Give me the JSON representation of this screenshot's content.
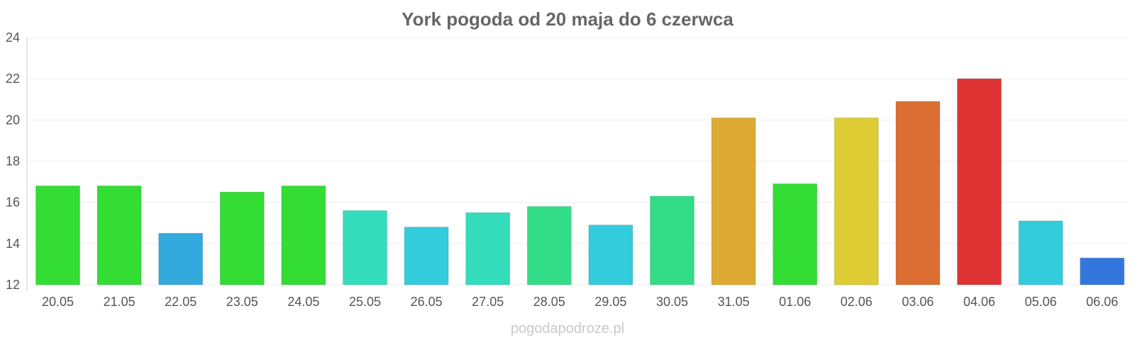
{
  "chart_data": {
    "type": "bar",
    "title": "York pogoda od 20 maja do 6 czerwca",
    "xlabel": "",
    "ylabel": "",
    "ylim": [
      12,
      24
    ],
    "yticks": [
      "12",
      "14",
      "16",
      "18",
      "20",
      "22",
      "24"
    ],
    "grid": true,
    "categories": [
      "20.05",
      "21.05",
      "22.05",
      "23.05",
      "24.05",
      "25.05",
      "26.05",
      "27.05",
      "28.05",
      "29.05",
      "30.05",
      "31.05",
      "01.06",
      "02.06",
      "03.06",
      "04.06",
      "05.06",
      "06.06"
    ],
    "values": [
      16.8,
      16.8,
      14.5,
      16.5,
      16.8,
      15.6,
      14.8,
      15.5,
      15.8,
      14.9,
      16.3,
      20.1,
      16.9,
      20.1,
      20.9,
      22.0,
      15.1,
      13.3
    ],
    "colors": [
      "#33dd33",
      "#33dd33",
      "#33aadd",
      "#33dd33",
      "#33dd33",
      "#33ddbb",
      "#33ccdd",
      "#33ddbb",
      "#33dd88",
      "#33ccdd",
      "#33dd88",
      "#ddaa33",
      "#33dd33",
      "#ddcc33",
      "#dd6e33",
      "#dd3333",
      "#33ccdd",
      "#3377dd"
    ]
  },
  "watermark": "pogodapodroze.pl"
}
